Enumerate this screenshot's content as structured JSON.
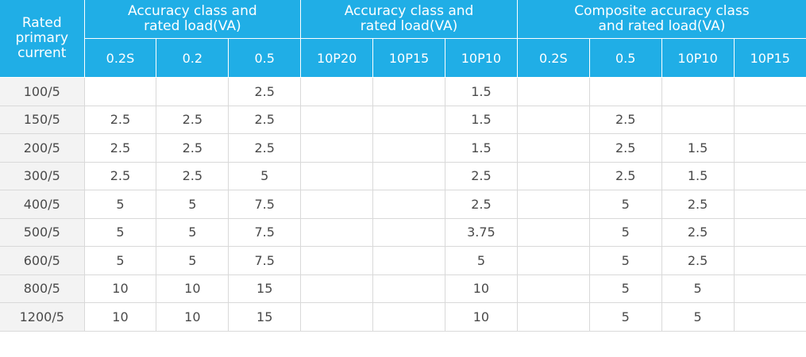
{
  "header": {
    "rated_label": "Rated\nprimary\ncurrent",
    "groups": [
      "Accuracy class and\nrated load(VA)",
      "Accuracy class and\nrated load(VA)",
      "Composite accuracy class\nand rated load(VA)"
    ],
    "subheaders": [
      "0.2S",
      "0.2",
      "0.5",
      "10P20",
      "10P15",
      "10P10",
      "0.2S",
      "0.5",
      "10P10",
      "10P15"
    ]
  },
  "rows": [
    {
      "current": "100/5",
      "cells": [
        "",
        "",
        "2.5",
        "",
        "",
        "1.5",
        "",
        "",
        "",
        ""
      ]
    },
    {
      "current": "150/5",
      "cells": [
        "2.5",
        "2.5",
        "2.5",
        "",
        "",
        "1.5",
        "",
        "2.5",
        "",
        ""
      ]
    },
    {
      "current": "200/5",
      "cells": [
        "2.5",
        "2.5",
        "2.5",
        "",
        "",
        "1.5",
        "",
        "2.5",
        "1.5",
        ""
      ]
    },
    {
      "current": "300/5",
      "cells": [
        "2.5",
        "2.5",
        "5",
        "",
        "",
        "2.5",
        "",
        "2.5",
        "1.5",
        ""
      ]
    },
    {
      "current": "400/5",
      "cells": [
        "5",
        "5",
        "7.5",
        "",
        "",
        "2.5",
        "",
        "5",
        "2.5",
        ""
      ]
    },
    {
      "current": "500/5",
      "cells": [
        "5",
        "5",
        "7.5",
        "",
        "",
        "3.75",
        "",
        "5",
        "2.5",
        ""
      ]
    },
    {
      "current": "600/5",
      "cells": [
        "5",
        "5",
        "7.5",
        "",
        "",
        "5",
        "",
        "5",
        "2.5",
        ""
      ]
    },
    {
      "current": "800/5",
      "cells": [
        "10",
        "10",
        "15",
        "",
        "",
        "10",
        "",
        "5",
        "5",
        ""
      ]
    },
    {
      "current": "1200/5",
      "cells": [
        "10",
        "10",
        "15",
        "",
        "",
        "10",
        "",
        "5",
        "5",
        ""
      ]
    }
  ],
  "colors": {
    "header_bg": "#20aee6",
    "header_text": "#ffffff",
    "first_col_bg": "#f3f3f3",
    "body_text": "#4a4a4a",
    "grid_line": "#d9d9d9"
  }
}
